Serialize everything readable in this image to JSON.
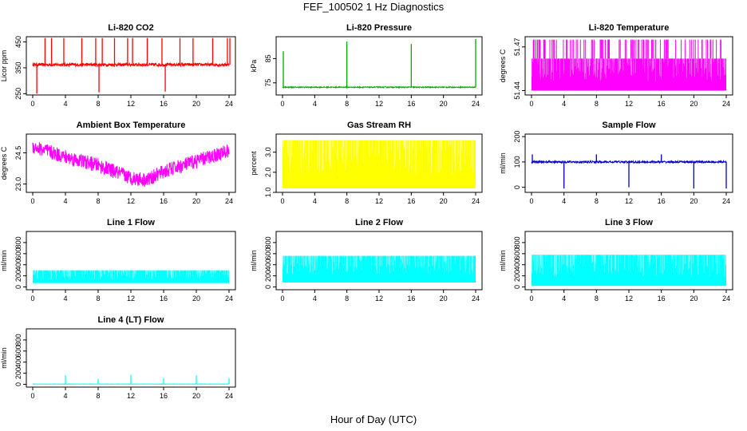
{
  "page": {
    "title": "FEF_100502  1 Hz Diagnostics",
    "xlabel": "Hour of Day (UTC)"
  },
  "chart_data": [
    {
      "type": "line",
      "title": "Li-820 CO2",
      "ylabel": "Licor ppm",
      "color": "#ff0000",
      "xlim": [
        0,
        24
      ],
      "ylim": [
        245,
        470
      ],
      "xticks": [
        "0",
        "4",
        "8",
        "12",
        "16",
        "20",
        "24"
      ],
      "yticks": [
        250,
        350,
        450
      ],
      "ytick_labels": [
        "250",
        "350",
        "450"
      ],
      "baseline": 362,
      "noise": 6,
      "spikes": [
        {
          "x": 0.5,
          "y": 250
        },
        {
          "x": 1.5,
          "y": 465
        },
        {
          "x": 2.3,
          "y": 465
        },
        {
          "x": 3.8,
          "y": 465
        },
        {
          "x": 6.0,
          "y": 465
        },
        {
          "x": 7.7,
          "y": 465
        },
        {
          "x": 8.1,
          "y": 255
        },
        {
          "x": 8.5,
          "y": 465
        },
        {
          "x": 10.0,
          "y": 465
        },
        {
          "x": 11.6,
          "y": 465
        },
        {
          "x": 12.2,
          "y": 465
        },
        {
          "x": 14.0,
          "y": 465
        },
        {
          "x": 15.8,
          "y": 465
        },
        {
          "x": 16.2,
          "y": 258
        },
        {
          "x": 18.0,
          "y": 465
        },
        {
          "x": 19.6,
          "y": 465
        },
        {
          "x": 22.0,
          "y": 465
        },
        {
          "x": 23.8,
          "y": 465
        },
        {
          "x": 24.1,
          "y": 465
        }
      ]
    },
    {
      "type": "line",
      "title": "Li-820 Pressure",
      "ylabel": "kPa",
      "color": "#00aa00",
      "xlim": [
        0,
        24
      ],
      "ylim": [
        70,
        94
      ],
      "xticks": [
        "0",
        "4",
        "8",
        "12",
        "16",
        "20",
        "24"
      ],
      "yticks": [
        75,
        85
      ],
      "ytick_labels": [
        "75",
        "85"
      ],
      "baseline": 73.2,
      "noise": 0.2,
      "spikes": [
        {
          "x": 0.1,
          "y": 88
        },
        {
          "x": 8.0,
          "y": 92
        },
        {
          "x": 16.0,
          "y": 91
        },
        {
          "x": 24.0,
          "y": 93
        }
      ]
    },
    {
      "type": "area",
      "title": "Li-820 Temperature",
      "ylabel": "degrees C",
      "color": "#ff00ff",
      "xlim": [
        0,
        24
      ],
      "ylim": [
        51.437,
        51.477
      ],
      "xticks": [
        "0",
        "4",
        "8",
        "12",
        "16",
        "20",
        "24"
      ],
      "yticks": [
        51.44,
        51.47
      ],
      "ytick_labels": [
        "51.44",
        "51.47"
      ],
      "band": [
        51.44,
        51.462
      ],
      "spike_top": 51.475
    },
    {
      "type": "line",
      "title": "Ambient Box Temperature",
      "ylabel": "degrees C",
      "color": "#ff00ff",
      "xlim": [
        0,
        24
      ],
      "ylim": [
        22.6,
        25.4
      ],
      "xticks": [
        "0",
        "4",
        "8",
        "12",
        "16",
        "20",
        "24"
      ],
      "yticks": [
        23.0,
        24.5
      ],
      "ytick_labels": [
        "23.0",
        "24.5"
      ],
      "curve": [
        [
          0,
          24.8
        ],
        [
          4,
          24.3
        ],
        [
          8,
          23.9
        ],
        [
          12,
          23.3
        ],
        [
          14,
          23.2
        ],
        [
          16,
          23.6
        ],
        [
          20,
          24.1
        ],
        [
          24,
          24.6
        ]
      ],
      "noise": 0.35
    },
    {
      "type": "area",
      "title": "Gas Stream RH",
      "ylabel": "percent",
      "color": "#ffff00",
      "xlim": [
        0,
        24
      ],
      "ylim": [
        1.0,
        3.9
      ],
      "xticks": [
        "0",
        "4",
        "8",
        "12",
        "16",
        "20",
        "24"
      ],
      "yticks": [
        1.0,
        2.0,
        3.0
      ],
      "ytick_labels": [
        "1.0",
        "2.0",
        "3.0"
      ],
      "band": [
        1.2,
        3.6
      ],
      "spike_top": 3.6
    },
    {
      "type": "line",
      "title": "Sample Flow",
      "ylabel": "ml/min",
      "color": "#0000cc",
      "xlim": [
        0,
        24
      ],
      "ylim": [
        -20,
        210
      ],
      "xticks": [
        "0",
        "4",
        "8",
        "12",
        "16",
        "20",
        "24"
      ],
      "yticks": [
        0,
        100,
        200
      ],
      "ytick_labels": [
        "0",
        "100",
        "200"
      ],
      "baseline": 100,
      "noise": 4,
      "spikes": [
        {
          "x": 0.1,
          "y": 130
        },
        {
          "x": 4.0,
          "y": -5
        },
        {
          "x": 8.0,
          "y": 130
        },
        {
          "x": 12.0,
          "y": 0
        },
        {
          "x": 16.0,
          "y": 130
        },
        {
          "x": 20.0,
          "y": -5
        },
        {
          "x": 24.0,
          "y": -5
        }
      ]
    },
    {
      "type": "area",
      "title": "Line 1 Flow",
      "ylabel": "ml/min",
      "color": "#00ffff",
      "xlim": [
        0,
        24
      ],
      "ylim": [
        -50,
        1000
      ],
      "xticks": [
        "0",
        "4",
        "8",
        "12",
        "16",
        "20",
        "24"
      ],
      "yticks": [
        0,
        200,
        400,
        600,
        800
      ],
      "ytick_labels": [
        "0",
        "200",
        "400",
        "600",
        "800"
      ],
      "band": [
        70,
        300
      ],
      "spike_top": 300
    },
    {
      "type": "area",
      "title": "Line 2 Flow",
      "ylabel": "ml/min",
      "color": "#00ffff",
      "xlim": [
        0,
        24
      ],
      "ylim": [
        -50,
        1000
      ],
      "xticks": [
        "0",
        "4",
        "8",
        "12",
        "16",
        "20",
        "24"
      ],
      "yticks": [
        0,
        200,
        400,
        600,
        800
      ],
      "ytick_labels": [
        "0",
        "200",
        "400",
        "600",
        "800"
      ],
      "band": [
        80,
        560
      ],
      "spike_top": 560
    },
    {
      "type": "area",
      "title": "Line 3 Flow",
      "ylabel": "ml/min",
      "color": "#00ffff",
      "xlim": [
        0,
        24
      ],
      "ylim": [
        -50,
        1000
      ],
      "xticks": [
        "0",
        "4",
        "8",
        "12",
        "16",
        "20",
        "24"
      ],
      "yticks": [
        0,
        200,
        400,
        600,
        800
      ],
      "ytick_labels": [
        "0",
        "200",
        "400",
        "600",
        "800"
      ],
      "band": [
        20,
        580
      ],
      "spike_top": 580
    },
    {
      "type": "line",
      "title": "Line 4 (LT) Flow",
      "ylabel": "ml/min",
      "color": "#00ffff",
      "xlim": [
        0,
        24
      ],
      "ylim": [
        -50,
        1000
      ],
      "xticks": [
        "0",
        "4",
        "8",
        "12",
        "16",
        "20",
        "24"
      ],
      "yticks": [
        0,
        200,
        400,
        600,
        800
      ],
      "ytick_labels": [
        "0",
        "200",
        "400",
        "600",
        "800"
      ],
      "baseline": 5,
      "noise": 3,
      "spikes": [
        {
          "x": 4.0,
          "y": 160
        },
        {
          "x": 8.0,
          "y": 100
        },
        {
          "x": 12.0,
          "y": 170
        },
        {
          "x": 16.0,
          "y": 110
        },
        {
          "x": 20.0,
          "y": 160
        },
        {
          "x": 24.0,
          "y": 110
        }
      ]
    }
  ]
}
